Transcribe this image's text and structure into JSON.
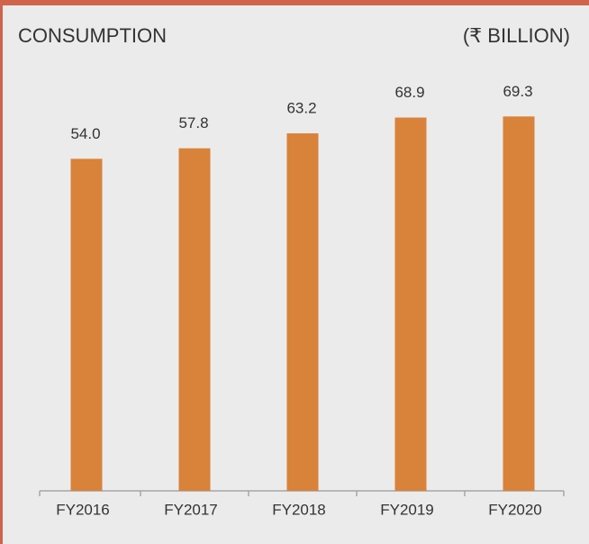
{
  "chart_data": {
    "type": "bar",
    "title": "CONSUMPTION",
    "unit_label": "(₹ BILLION)",
    "categories": [
      "FY2016",
      "FY2017",
      "FY2018",
      "FY2019",
      "FY2020"
    ],
    "values": [
      54.0,
      57.8,
      63.2,
      68.9,
      69.3
    ],
    "value_labels": [
      "54.0",
      "57.8",
      "63.2",
      "68.9",
      "69.3"
    ],
    "color": "#d9823a",
    "ylim": [
      -66,
      100
    ]
  }
}
